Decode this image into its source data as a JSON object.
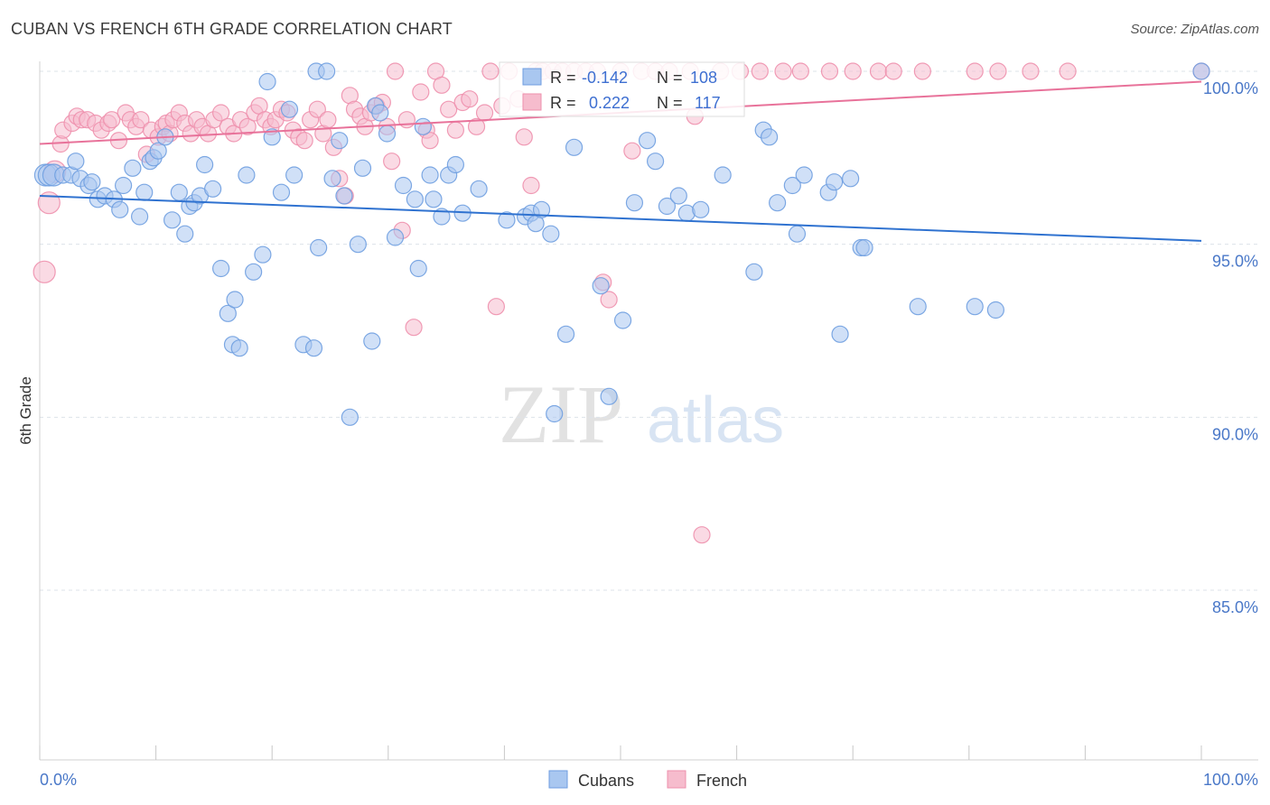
{
  "title": "CUBAN VS FRENCH 6TH GRADE CORRELATION CHART",
  "source": "Source: ZipAtlas.com",
  "watermark": {
    "zip": "ZIP",
    "atlas": "atlas"
  },
  "colors": {
    "blue": "#a9c7f0",
    "blue_stroke": "#6f9ee0",
    "blue_line": "#2f72d0",
    "pink": "#f6bccd",
    "pink_stroke": "#ee90ad",
    "pink_line": "#e8729a",
    "grid": "#dde3ea",
    "axis_text": "#4a78c8"
  },
  "stats": {
    "blue": {
      "r_label": "R =",
      "r_value": "-0.142",
      "n_label": "N =",
      "n_value": "108"
    },
    "pink": {
      "r_label": "R =",
      "r_value": "0.222",
      "n_label": "N =",
      "n_value": "117"
    }
  },
  "legend": {
    "cubans": "Cubans",
    "french": "French"
  },
  "chart_data": {
    "type": "scatter",
    "title": "CUBAN VS FRENCH 6TH GRADE CORRELATION CHART",
    "xlabel": "",
    "ylabel": "6th Grade",
    "xlim": [
      0,
      100
    ],
    "ylim": [
      80.8,
      100.7
    ],
    "x_tick_labels": [
      "0.0%",
      "100.0%"
    ],
    "y_ticks": [
      85,
      90,
      95,
      100
    ],
    "y_tick_labels": [
      "85.0%",
      "90.0%",
      "95.0%",
      "100.0%"
    ],
    "grid": true,
    "legend_position": "bottom-center",
    "series": [
      {
        "name": "Cubans",
        "color": "#a9c7f0",
        "trend": {
          "x": [
            0,
            100
          ],
          "y": [
            96.4,
            95.1
          ]
        },
        "points": [
          [
            0.5,
            97.0
          ],
          [
            0.8,
            97.0
          ],
          [
            1.2,
            97.0
          ],
          [
            2.0,
            97.0
          ],
          [
            2.7,
            97.0
          ],
          [
            3.1,
            97.4
          ],
          [
            3.5,
            96.9
          ],
          [
            4.2,
            96.7
          ],
          [
            4.5,
            96.8
          ],
          [
            5.0,
            96.3
          ],
          [
            5.6,
            96.4
          ],
          [
            6.4,
            96.3
          ],
          [
            6.9,
            96.0
          ],
          [
            7.2,
            96.7
          ],
          [
            8.0,
            97.2
          ],
          [
            8.6,
            95.8
          ],
          [
            9.0,
            96.5
          ],
          [
            9.5,
            97.4
          ],
          [
            9.8,
            97.5
          ],
          [
            10.2,
            97.7
          ],
          [
            10.8,
            98.1
          ],
          [
            11.4,
            95.7
          ],
          [
            12.0,
            96.5
          ],
          [
            12.5,
            95.3
          ],
          [
            12.9,
            96.1
          ],
          [
            13.3,
            96.2
          ],
          [
            13.8,
            96.4
          ],
          [
            14.2,
            97.3
          ],
          [
            14.9,
            96.6
          ],
          [
            15.6,
            94.3
          ],
          [
            16.2,
            93.0
          ],
          [
            16.6,
            92.1
          ],
          [
            16.8,
            93.4
          ],
          [
            17.2,
            92.0
          ],
          [
            17.8,
            97.0
          ],
          [
            18.4,
            94.2
          ],
          [
            19.2,
            94.7
          ],
          [
            19.6,
            99.7
          ],
          [
            20.0,
            98.1
          ],
          [
            20.8,
            96.5
          ],
          [
            21.5,
            98.9
          ],
          [
            21.9,
            97.0
          ],
          [
            22.7,
            92.1
          ],
          [
            23.6,
            92.0
          ],
          [
            23.8,
            100.0
          ],
          [
            24.0,
            94.9
          ],
          [
            24.7,
            100.0
          ],
          [
            25.2,
            96.9
          ],
          [
            25.8,
            98.0
          ],
          [
            26.2,
            96.4
          ],
          [
            26.7,
            90.0
          ],
          [
            27.4,
            95.0
          ],
          [
            27.8,
            97.2
          ],
          [
            28.6,
            92.2
          ],
          [
            28.9,
            99.0
          ],
          [
            29.3,
            98.8
          ],
          [
            29.9,
            98.2
          ],
          [
            30.6,
            95.2
          ],
          [
            31.3,
            96.7
          ],
          [
            32.3,
            96.3
          ],
          [
            32.6,
            94.3
          ],
          [
            33.0,
            98.4
          ],
          [
            33.6,
            97.0
          ],
          [
            33.9,
            96.3
          ],
          [
            34.6,
            95.8
          ],
          [
            35.2,
            97.0
          ],
          [
            35.8,
            97.3
          ],
          [
            36.4,
            95.9
          ],
          [
            37.8,
            96.6
          ],
          [
            40.2,
            95.7
          ],
          [
            41.8,
            95.8
          ],
          [
            42.3,
            95.9
          ],
          [
            42.7,
            95.6
          ],
          [
            43.2,
            96.0
          ],
          [
            44.0,
            95.3
          ],
          [
            44.3,
            90.1
          ],
          [
            45.3,
            92.4
          ],
          [
            46.0,
            97.8
          ],
          [
            48.3,
            93.8
          ],
          [
            49.0,
            90.6
          ],
          [
            50.2,
            92.8
          ],
          [
            51.2,
            96.2
          ],
          [
            52.3,
            98.0
          ],
          [
            53.0,
            97.4
          ],
          [
            54.0,
            96.1
          ],
          [
            55.0,
            96.4
          ],
          [
            55.7,
            95.9
          ],
          [
            56.9,
            96.0
          ],
          [
            58.8,
            97.0
          ],
          [
            61.5,
            94.2
          ],
          [
            62.3,
            98.3
          ],
          [
            62.8,
            98.1
          ],
          [
            63.5,
            96.2
          ],
          [
            64.8,
            96.7
          ],
          [
            65.2,
            95.3
          ],
          [
            65.8,
            97.0
          ],
          [
            67.9,
            96.5
          ],
          [
            68.4,
            96.8
          ],
          [
            68.9,
            92.4
          ],
          [
            69.8,
            96.9
          ],
          [
            70.7,
            94.9
          ],
          [
            71.0,
            94.9
          ],
          [
            75.6,
            93.2
          ],
          [
            80.5,
            93.2
          ],
          [
            82.3,
            93.1
          ],
          [
            100.0,
            100.0
          ]
        ]
      },
      {
        "name": "French",
        "color": "#f6bccd",
        "trend": {
          "x": [
            0,
            100
          ],
          "y": [
            97.9,
            99.7
          ]
        },
        "points": [
          [
            0.4,
            94.2
          ],
          [
            0.8,
            96.2
          ],
          [
            1.3,
            97.1
          ],
          [
            1.8,
            97.9
          ],
          [
            2.0,
            98.3
          ],
          [
            2.8,
            98.5
          ],
          [
            3.2,
            98.7
          ],
          [
            3.6,
            98.6
          ],
          [
            4.1,
            98.6
          ],
          [
            4.8,
            98.5
          ],
          [
            5.3,
            98.3
          ],
          [
            5.9,
            98.5
          ],
          [
            6.2,
            98.6
          ],
          [
            6.8,
            98.0
          ],
          [
            7.4,
            98.8
          ],
          [
            7.8,
            98.6
          ],
          [
            8.3,
            98.4
          ],
          [
            8.7,
            98.6
          ],
          [
            9.2,
            97.6
          ],
          [
            9.6,
            98.3
          ],
          [
            10.2,
            98.1
          ],
          [
            10.6,
            98.4
          ],
          [
            10.9,
            98.5
          ],
          [
            11.2,
            98.2
          ],
          [
            11.5,
            98.6
          ],
          [
            12.0,
            98.8
          ],
          [
            12.5,
            98.5
          ],
          [
            13.0,
            98.2
          ],
          [
            13.5,
            98.6
          ],
          [
            14.0,
            98.4
          ],
          [
            14.5,
            98.2
          ],
          [
            15.0,
            98.6
          ],
          [
            15.6,
            98.8
          ],
          [
            16.2,
            98.4
          ],
          [
            16.7,
            98.2
          ],
          [
            17.3,
            98.6
          ],
          [
            17.9,
            98.4
          ],
          [
            18.5,
            98.8
          ],
          [
            18.9,
            99.0
          ],
          [
            19.4,
            98.6
          ],
          [
            19.9,
            98.4
          ],
          [
            20.3,
            98.6
          ],
          [
            20.8,
            98.9
          ],
          [
            21.3,
            98.8
          ],
          [
            21.8,
            98.3
          ],
          [
            22.3,
            98.1
          ],
          [
            22.8,
            98.0
          ],
          [
            23.3,
            98.6
          ],
          [
            23.9,
            98.9
          ],
          [
            24.4,
            98.2
          ],
          [
            24.8,
            98.6
          ],
          [
            25.3,
            97.8
          ],
          [
            25.8,
            96.9
          ],
          [
            26.3,
            96.4
          ],
          [
            26.7,
            99.3
          ],
          [
            27.1,
            98.9
          ],
          [
            27.6,
            98.7
          ],
          [
            28.0,
            98.4
          ],
          [
            28.5,
            98.8
          ],
          [
            29.0,
            99.0
          ],
          [
            29.5,
            99.1
          ],
          [
            29.9,
            98.4
          ],
          [
            30.3,
            97.4
          ],
          [
            30.6,
            100.0
          ],
          [
            31.2,
            95.4
          ],
          [
            31.6,
            98.6
          ],
          [
            32.2,
            92.6
          ],
          [
            32.8,
            99.4
          ],
          [
            33.3,
            98.3
          ],
          [
            33.6,
            98.0
          ],
          [
            34.1,
            100.0
          ],
          [
            34.6,
            99.6
          ],
          [
            35.2,
            98.9
          ],
          [
            35.8,
            98.3
          ],
          [
            36.4,
            99.1
          ],
          [
            37.0,
            99.2
          ],
          [
            37.6,
            98.4
          ],
          [
            38.3,
            98.8
          ],
          [
            38.8,
            100.0
          ],
          [
            39.3,
            93.2
          ],
          [
            39.8,
            99.0
          ],
          [
            40.4,
            100.0
          ],
          [
            41.2,
            99.2
          ],
          [
            41.7,
            98.1
          ],
          [
            42.3,
            96.7
          ],
          [
            42.7,
            100.0
          ],
          [
            43.3,
            100.0
          ],
          [
            44.2,
            100.0
          ],
          [
            45.0,
            100.0
          ],
          [
            46.0,
            100.0
          ],
          [
            47.0,
            100.0
          ],
          [
            48.0,
            100.0
          ],
          [
            48.5,
            93.9
          ],
          [
            49.0,
            93.4
          ],
          [
            50.0,
            100.0
          ],
          [
            51.0,
            97.7
          ],
          [
            51.8,
            100.0
          ],
          [
            53.0,
            100.0
          ],
          [
            54.2,
            100.0
          ],
          [
            56.0,
            100.0
          ],
          [
            57.0,
            86.6
          ],
          [
            58.6,
            100.0
          ],
          [
            60.3,
            100.0
          ],
          [
            62.0,
            100.0
          ],
          [
            64.0,
            100.0
          ],
          [
            65.5,
            100.0
          ],
          [
            68.0,
            100.0
          ],
          [
            70.0,
            100.0
          ],
          [
            72.2,
            100.0
          ],
          [
            73.5,
            100.0
          ],
          [
            76.0,
            100.0
          ],
          [
            80.5,
            100.0
          ],
          [
            82.5,
            100.0
          ],
          [
            85.3,
            100.0
          ],
          [
            88.5,
            100.0
          ],
          [
            56.4,
            98.7
          ],
          [
            100.0,
            100.0
          ]
        ]
      }
    ]
  }
}
